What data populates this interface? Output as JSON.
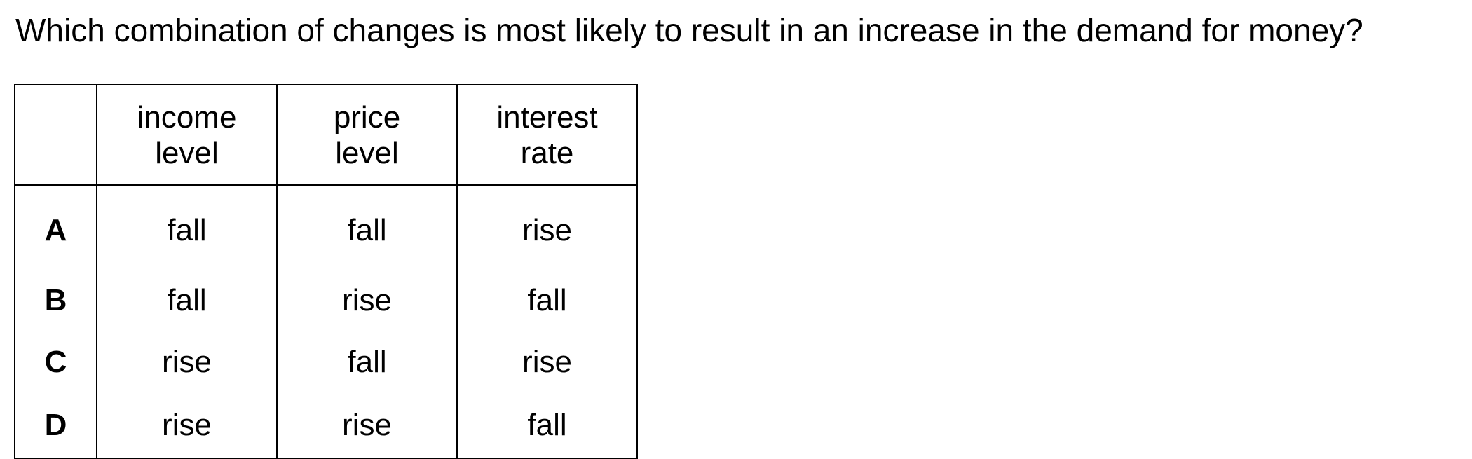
{
  "question": "Which combination of changes is most likely to result in an increase in the demand for money?",
  "table": {
    "headers": [
      {
        "line1": "",
        "line2": ""
      },
      {
        "line1": "income",
        "line2": "level"
      },
      {
        "line1": "price",
        "line2": "level"
      },
      {
        "line1": "interest",
        "line2": "rate"
      }
    ],
    "rows": [
      {
        "letter": "A",
        "income": "fall",
        "price": "fall",
        "interest": "rise"
      },
      {
        "letter": "B",
        "income": "fall",
        "price": "rise",
        "interest": "fall"
      },
      {
        "letter": "C",
        "income": "rise",
        "price": "fall",
        "interest": "rise"
      },
      {
        "letter": "D",
        "income": "rise",
        "price": "rise",
        "interest": "fall"
      }
    ]
  }
}
